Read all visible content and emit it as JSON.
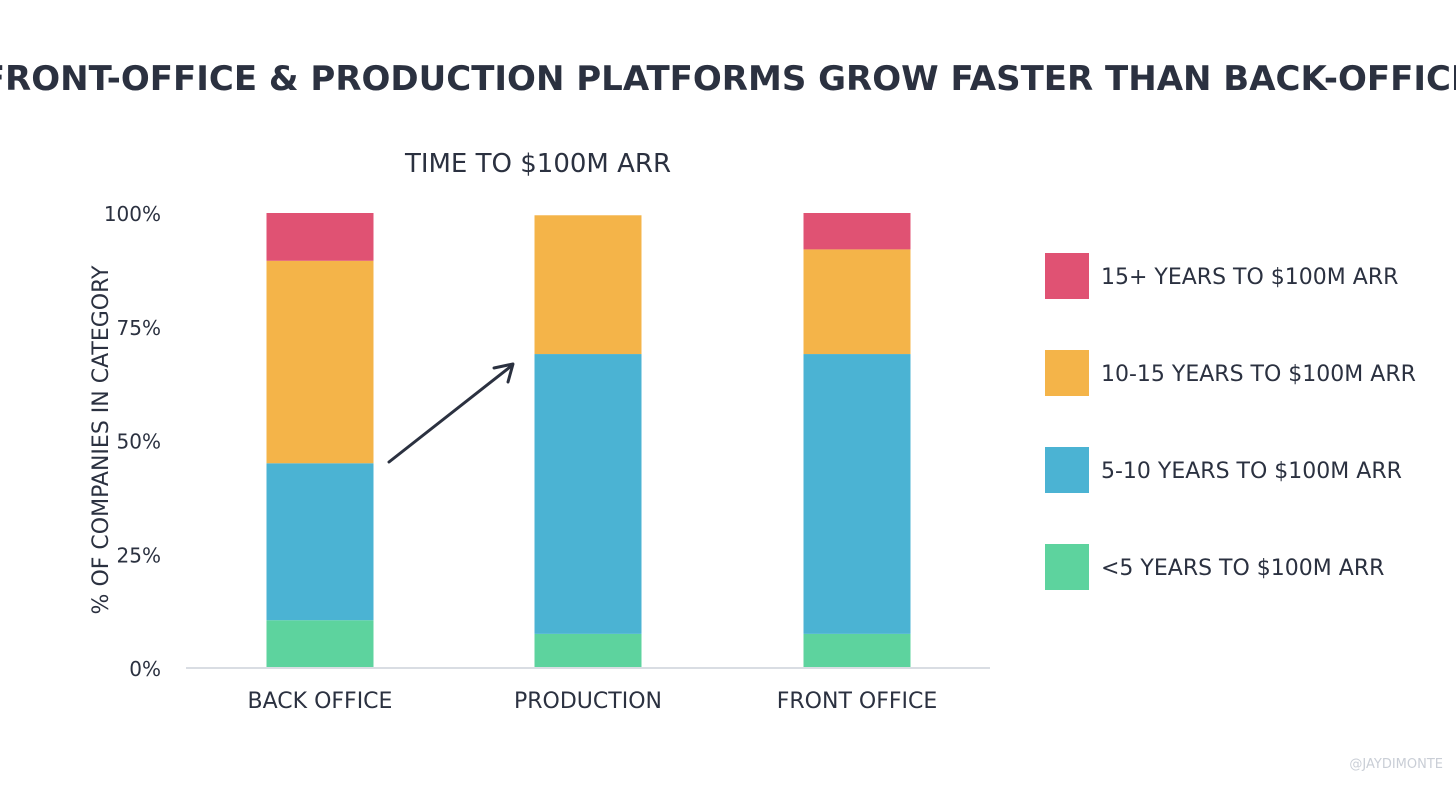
{
  "chart_data": {
    "type": "bar",
    "stacked": true,
    "title": "FRONT-OFFICE & PRODUCTION PLATFORMS GROW FASTER THAN BACK-OFFICE",
    "subtitle": "TIME TO $100M ARR",
    "ylabel": "% OF COMPANIES IN CATEGORY",
    "xlabel": "",
    "ylim": [
      0,
      100
    ],
    "y_ticks": [
      0,
      25,
      50,
      75,
      100
    ],
    "y_tick_labels": [
      "0%",
      "25%",
      "50%",
      "75%",
      "100%"
    ],
    "categories": [
      "BACK OFFICE",
      "PRODUCTION",
      "FRONT OFFICE"
    ],
    "series": [
      {
        "name": "<5 YEARS TO $100M ARR",
        "color": "#5dd39e",
        "values": [
          10.5,
          7.5,
          7.5
        ]
      },
      {
        "name": "5-10 YEARS TO $100M ARR",
        "color": "#4bb3d3",
        "values": [
          34.5,
          61.5,
          61.5
        ]
      },
      {
        "name": "10-15 YEARS TO $100M ARR",
        "color": "#f4b449",
        "values": [
          44.5,
          30.5,
          23.0
        ]
      },
      {
        "name": "15+ YEARS TO $100M ARR",
        "color": "#e05273",
        "values": [
          10.5,
          0,
          8.0
        ]
      }
    ],
    "legend_position": "right",
    "legend_order": [
      "15+ YEARS TO $100M ARR",
      "10-15 YEARS TO $100M ARR",
      "5-10 YEARS TO $100M ARR",
      "<5 YEARS TO $100M ARR"
    ],
    "grid": false,
    "annotation": "arrow from BACK OFFICE to PRODUCTION"
  },
  "watermark": "@JAYDIMONTE",
  "colors": {
    "text": "#2b3140",
    "axis": "#d9dde3",
    "watermark": "#c9ced6"
  }
}
